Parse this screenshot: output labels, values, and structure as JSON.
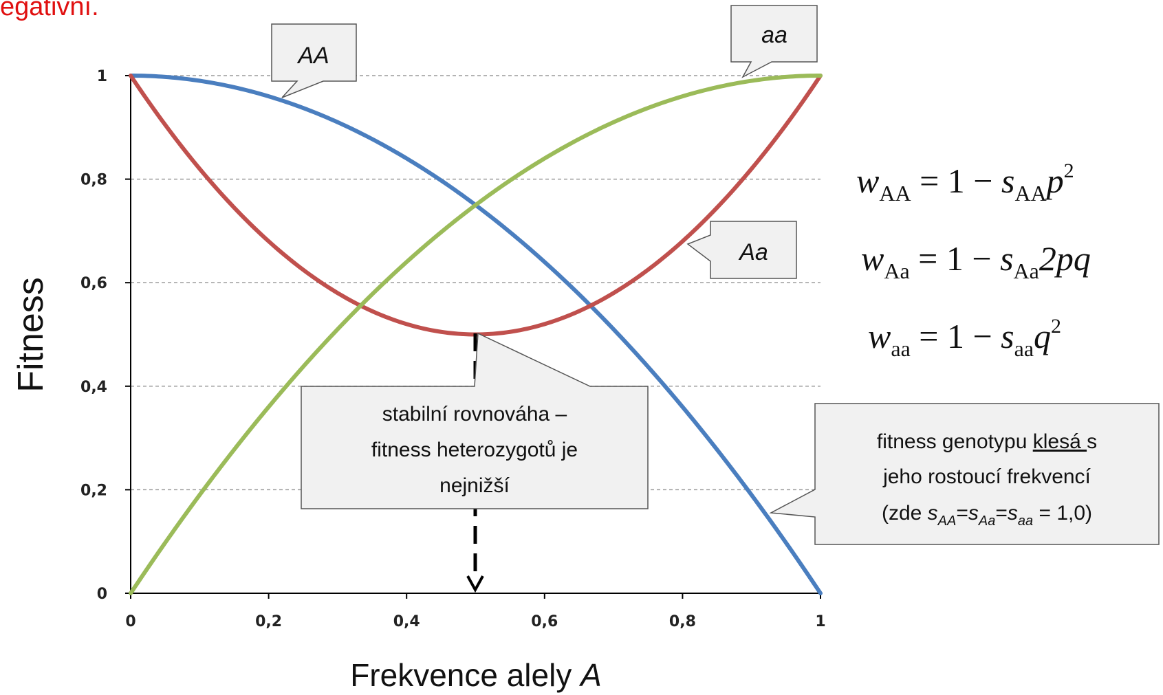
{
  "top_text": "egativní.",
  "chart_data": {
    "type": "line",
    "xlabel_prefix": "Frekvence alely ",
    "xlabel_var": "A",
    "ylabel": "Fitness",
    "xlim": [
      0,
      1
    ],
    "ylim": [
      0,
      1
    ],
    "x_ticks": [
      "0",
      "0,2",
      "0,4",
      "0,6",
      "0,8",
      "1"
    ],
    "y_ticks": [
      "0",
      "0,2",
      "0,4",
      "0,6",
      "0,8",
      "1"
    ],
    "grid": true,
    "series": [
      {
        "name": "AA",
        "color": "#4a7ebf",
        "formula": "1 - p^2",
        "x": [
          0,
          0.1,
          0.2,
          0.3,
          0.4,
          0.5,
          0.6,
          0.7,
          0.8,
          0.9,
          1
        ],
        "y": [
          1,
          0.99,
          0.96,
          0.91,
          0.84,
          0.75,
          0.64,
          0.51,
          0.36,
          0.19,
          0
        ]
      },
      {
        "name": "Aa",
        "color": "#c0504d",
        "formula": "1 - 2pq",
        "x": [
          0,
          0.1,
          0.2,
          0.3,
          0.4,
          0.5,
          0.6,
          0.7,
          0.8,
          0.9,
          1
        ],
        "y": [
          1,
          0.82,
          0.68,
          0.58,
          0.52,
          0.5,
          0.52,
          0.58,
          0.68,
          0.82,
          1
        ]
      },
      {
        "name": "aa",
        "color": "#9bbb59",
        "formula": "1 - q^2",
        "x": [
          0,
          0.1,
          0.2,
          0.3,
          0.4,
          0.5,
          0.6,
          0.7,
          0.8,
          0.9,
          1
        ],
        "y": [
          0,
          0.19,
          0.36,
          0.51,
          0.64,
          0.75,
          0.84,
          0.91,
          0.96,
          0.99,
          1
        ]
      }
    ],
    "equilibrium_x": 0.5,
    "callouts": {
      "equilibrium": [
        "stabilní rovnováha –",
        "fitness heterozygotů je",
        "nejnižší"
      ],
      "note_line1_a": "fitness genotypu ",
      "note_line1_u": "klesá ",
      "note_line1_b": "s",
      "note_line2": "jeho rostoucí frekvencí",
      "note_line3": {
        "open": "(zde ",
        "s1": "s",
        "sub1": "AA",
        "eq1": "=",
        "s2": "s",
        "sub2": "Aa",
        "eq2": "=",
        "s3": "s",
        "sub3": "aa",
        "tail": " = 1,0)"
      }
    },
    "formulas": [
      {
        "w": "w",
        "wsub": "AA",
        "mid": " = 1 − ",
        "s": "s",
        "ssub": "AA",
        "rest": "p",
        "sup": "2"
      },
      {
        "w": "w",
        "wsub": "Aa",
        "mid": " = 1 − ",
        "s": "s",
        "ssub": "Aa",
        "rest": "2pq",
        "sup": ""
      },
      {
        "w": "w",
        "wsub": "aa",
        "mid": " = 1 − ",
        "s": "s",
        "ssub": "aa",
        "rest": "q",
        "sup": "2"
      }
    ]
  }
}
